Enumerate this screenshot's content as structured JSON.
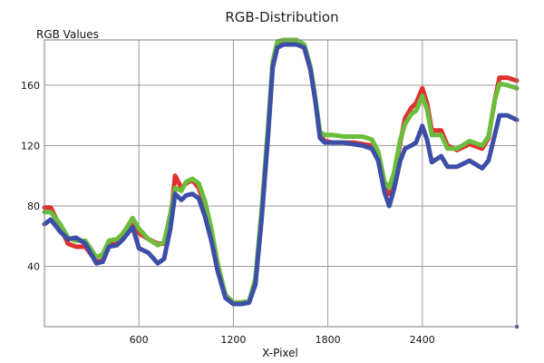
{
  "chart_data": {
    "type": "line",
    "title": "RGB-Distribution",
    "xlabel": "X-Pixel",
    "ylabel": "RGB Values",
    "xlim": [
      0,
      3000
    ],
    "ylim": [
      0,
      190
    ],
    "xticks": [
      600,
      1200,
      1800,
      2400
    ],
    "yticks": [
      40,
      80,
      120,
      160
    ],
    "grid": true,
    "series": [
      {
        "color": "#e03030",
        "points": [
          [
            0,
            79
          ],
          [
            40,
            79
          ],
          [
            100,
            66
          ],
          [
            150,
            55
          ],
          [
            200,
            53
          ],
          [
            260,
            53
          ],
          [
            330,
            43
          ],
          [
            370,
            44
          ],
          [
            410,
            54
          ],
          [
            460,
            56
          ],
          [
            500,
            60
          ],
          [
            560,
            70
          ],
          [
            600,
            62
          ],
          [
            660,
            58
          ],
          [
            720,
            55
          ],
          [
            760,
            55
          ],
          [
            800,
            70
          ],
          [
            830,
            100
          ],
          [
            870,
            92
          ],
          [
            900,
            95
          ],
          [
            940,
            97
          ],
          [
            980,
            92
          ],
          [
            1020,
            80
          ],
          [
            1060,
            62
          ],
          [
            1100,
            40
          ],
          [
            1150,
            20
          ],
          [
            1200,
            16
          ],
          [
            1250,
            16
          ],
          [
            1300,
            17
          ],
          [
            1340,
            30
          ],
          [
            1380,
            75
          ],
          [
            1420,
            130
          ],
          [
            1450,
            175
          ],
          [
            1480,
            187
          ],
          [
            1520,
            189
          ],
          [
            1600,
            188
          ],
          [
            1650,
            185
          ],
          [
            1690,
            170
          ],
          [
            1720,
            150
          ],
          [
            1750,
            127
          ],
          [
            1780,
            123
          ],
          [
            1830,
            122
          ],
          [
            1900,
            122
          ],
          [
            1960,
            122
          ],
          [
            2020,
            121
          ],
          [
            2080,
            120
          ],
          [
            2120,
            112
          ],
          [
            2160,
            93
          ],
          [
            2190,
            88
          ],
          [
            2220,
            100
          ],
          [
            2260,
            122
          ],
          [
            2290,
            138
          ],
          [
            2330,
            145
          ],
          [
            2360,
            148
          ],
          [
            2400,
            158
          ],
          [
            2430,
            148
          ],
          [
            2460,
            130
          ],
          [
            2520,
            130
          ],
          [
            2560,
            120
          ],
          [
            2620,
            117
          ],
          [
            2700,
            121
          ],
          [
            2780,
            118
          ],
          [
            2820,
            125
          ],
          [
            2860,
            150
          ],
          [
            2890,
            165
          ],
          [
            2940,
            165
          ],
          [
            3000,
            163
          ]
        ]
      },
      {
        "color": "#6cbd3c",
        "points": [
          [
            0,
            76
          ],
          [
            40,
            76
          ],
          [
            100,
            68
          ],
          [
            150,
            59
          ],
          [
            200,
            57
          ],
          [
            260,
            57
          ],
          [
            330,
            46
          ],
          [
            370,
            48
          ],
          [
            410,
            57
          ],
          [
            460,
            58
          ],
          [
            500,
            62
          ],
          [
            560,
            72
          ],
          [
            600,
            65
          ],
          [
            660,
            58
          ],
          [
            720,
            54
          ],
          [
            760,
            56
          ],
          [
            800,
            75
          ],
          [
            830,
            92
          ],
          [
            870,
            90
          ],
          [
            900,
            96
          ],
          [
            940,
            98
          ],
          [
            980,
            95
          ],
          [
            1020,
            83
          ],
          [
            1060,
            65
          ],
          [
            1100,
            42
          ],
          [
            1150,
            21
          ],
          [
            1200,
            16
          ],
          [
            1250,
            16
          ],
          [
            1300,
            17
          ],
          [
            1340,
            32
          ],
          [
            1380,
            78
          ],
          [
            1420,
            132
          ],
          [
            1450,
            176
          ],
          [
            1480,
            189
          ],
          [
            1520,
            190
          ],
          [
            1600,
            190
          ],
          [
            1650,
            187
          ],
          [
            1690,
            172
          ],
          [
            1720,
            152
          ],
          [
            1750,
            129
          ],
          [
            1780,
            127
          ],
          [
            1830,
            127
          ],
          [
            1900,
            126
          ],
          [
            1960,
            126
          ],
          [
            2020,
            126
          ],
          [
            2080,
            124
          ],
          [
            2120,
            116
          ],
          [
            2160,
            96
          ],
          [
            2190,
            92
          ],
          [
            2220,
            102
          ],
          [
            2260,
            124
          ],
          [
            2290,
            134
          ],
          [
            2330,
            141
          ],
          [
            2360,
            143
          ],
          [
            2400,
            153
          ],
          [
            2430,
            144
          ],
          [
            2460,
            127
          ],
          [
            2520,
            127
          ],
          [
            2560,
            118
          ],
          [
            2620,
            118
          ],
          [
            2700,
            123
          ],
          [
            2780,
            120
          ],
          [
            2820,
            126
          ],
          [
            2860,
            150
          ],
          [
            2890,
            161
          ],
          [
            2940,
            160
          ],
          [
            3000,
            158
          ]
        ]
      },
      {
        "color": "#3c4ea8",
        "points": [
          [
            0,
            68
          ],
          [
            40,
            71
          ],
          [
            100,
            63
          ],
          [
            150,
            58
          ],
          [
            200,
            59
          ],
          [
            260,
            55
          ],
          [
            330,
            42
          ],
          [
            370,
            43
          ],
          [
            410,
            53
          ],
          [
            460,
            54
          ],
          [
            500,
            58
          ],
          [
            560,
            66
          ],
          [
            600,
            52
          ],
          [
            660,
            49
          ],
          [
            720,
            42
          ],
          [
            760,
            45
          ],
          [
            800,
            65
          ],
          [
            830,
            88
          ],
          [
            870,
            84
          ],
          [
            900,
            87
          ],
          [
            940,
            88
          ],
          [
            980,
            85
          ],
          [
            1020,
            73
          ],
          [
            1060,
            57
          ],
          [
            1100,
            37
          ],
          [
            1150,
            19
          ],
          [
            1200,
            15
          ],
          [
            1250,
            15
          ],
          [
            1300,
            16
          ],
          [
            1340,
            28
          ],
          [
            1380,
            72
          ],
          [
            1420,
            126
          ],
          [
            1450,
            172
          ],
          [
            1480,
            185
          ],
          [
            1520,
            187
          ],
          [
            1600,
            187
          ],
          [
            1650,
            185
          ],
          [
            1690,
            170
          ],
          [
            1720,
            150
          ],
          [
            1750,
            125
          ],
          [
            1780,
            122
          ],
          [
            1830,
            122
          ],
          [
            1900,
            122
          ],
          [
            1960,
            121
          ],
          [
            2020,
            120
          ],
          [
            2080,
            118
          ],
          [
            2120,
            110
          ],
          [
            2160,
            89
          ],
          [
            2190,
            80
          ],
          [
            2220,
            91
          ],
          [
            2260,
            110
          ],
          [
            2290,
            118
          ],
          [
            2330,
            120
          ],
          [
            2360,
            122
          ],
          [
            2400,
            133
          ],
          [
            2430,
            124
          ],
          [
            2460,
            109
          ],
          [
            2520,
            113
          ],
          [
            2560,
            106
          ],
          [
            2620,
            106
          ],
          [
            2700,
            110
          ],
          [
            2780,
            105
          ],
          [
            2820,
            110
          ],
          [
            2860,
            127
          ],
          [
            2890,
            140
          ],
          [
            2940,
            140
          ],
          [
            3000,
            137
          ]
        ]
      }
    ]
  }
}
